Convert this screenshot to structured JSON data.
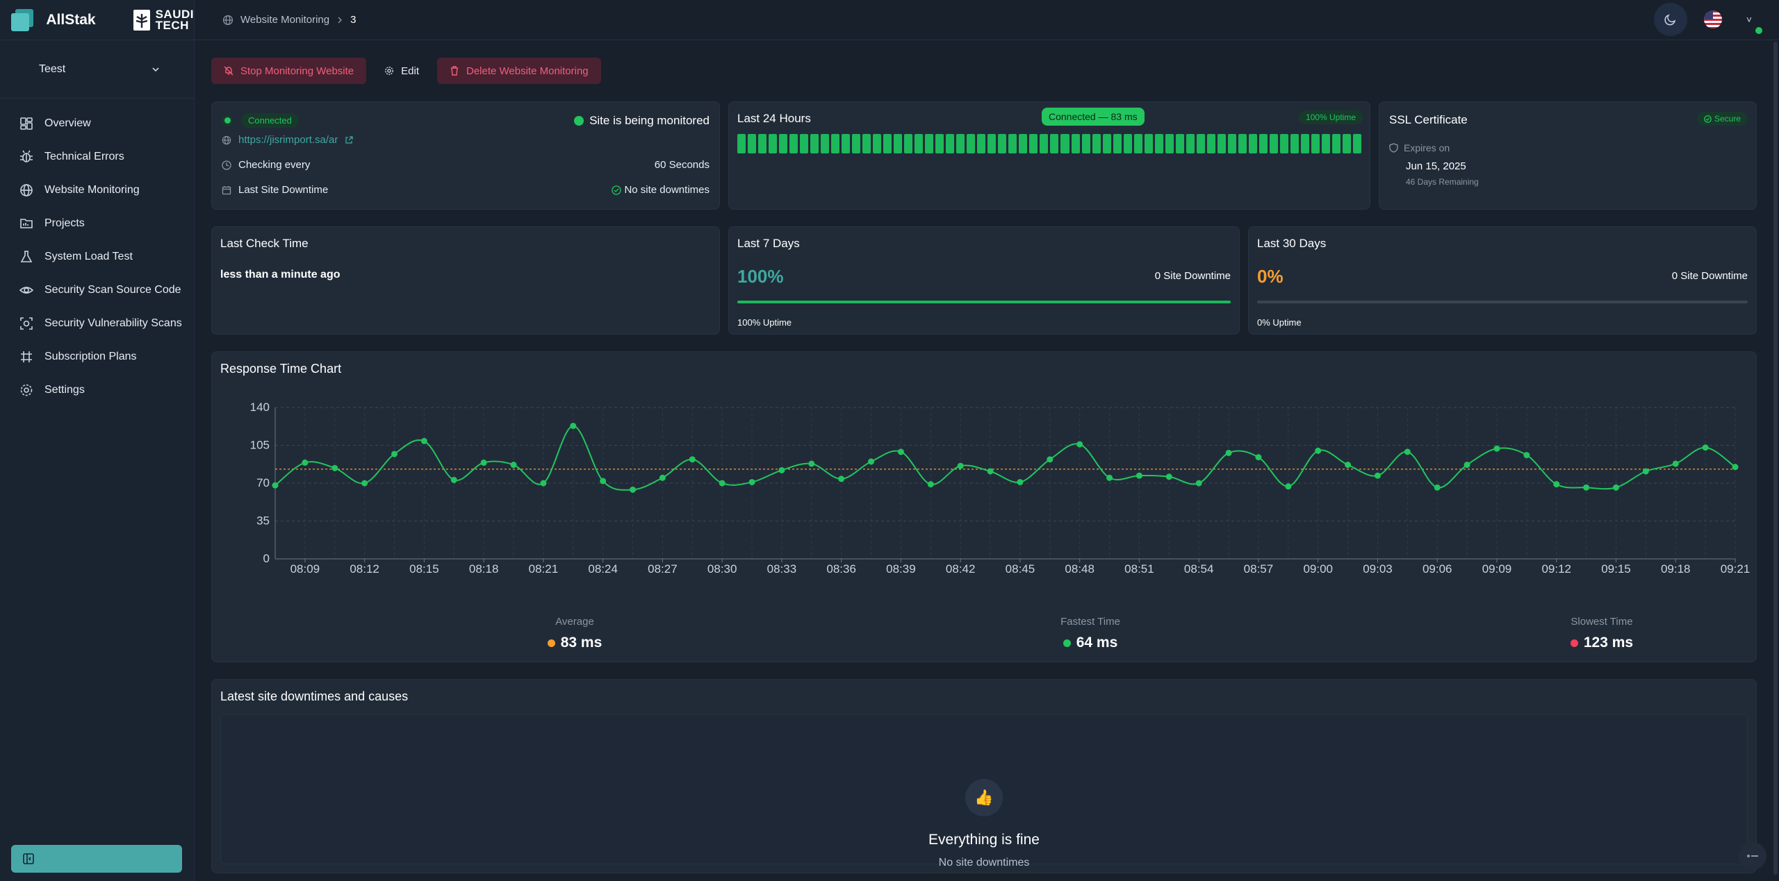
{
  "brand": {
    "name": "AllStak",
    "partner_line1": "SAUDI",
    "partner_line2": "TECH"
  },
  "breadcrumb": {
    "section": "Website Monitoring",
    "current": "3"
  },
  "project_selector": {
    "value": "Teest"
  },
  "sidebar": {
    "items": [
      {
        "label": "Overview",
        "icon": "grid-icon"
      },
      {
        "label": "Technical Errors",
        "icon": "bug-icon"
      },
      {
        "label": "Website Monitoring",
        "icon": "globe-icon"
      },
      {
        "label": "Projects",
        "icon": "folder-icon"
      },
      {
        "label": "System Load Test",
        "icon": "flask-icon"
      },
      {
        "label": "Security Scan Source Code",
        "icon": "eye-icon"
      },
      {
        "label": "Security Vulnerability Scans",
        "icon": "scan-icon"
      },
      {
        "label": "Subscription Plans",
        "icon": "plans-icon"
      },
      {
        "label": "Settings",
        "icon": "gear-icon"
      }
    ]
  },
  "actions": {
    "stop": "Stop Monitoring Website",
    "edit": "Edit",
    "delete": "Delete Website Monitoring"
  },
  "status_card": {
    "connected": "Connected",
    "monitored": "Site is being monitored",
    "url": "https://jisrimport.sa/ar",
    "checking_label": "Checking every",
    "checking_value": "60 Seconds",
    "downtime_label": "Last Site Downtime",
    "downtime_value": "No site downtimes"
  },
  "last24": {
    "title": "Last 24 Hours",
    "tooltip": "Connected — 83 ms",
    "badge": "100% Uptime",
    "segments": 60,
    "segment_color": "#1cb85b"
  },
  "ssl": {
    "title": "SSL Certificate",
    "badge": "Secure",
    "expires_label": "Expires on",
    "date": "Jun 15, 2025",
    "remaining": "46 Days Remaining"
  },
  "last_check": {
    "title": "Last Check Time",
    "value": "less than a minute ago"
  },
  "last7": {
    "title": "Last 7 Days",
    "pct": "100%",
    "downtime": "0 Site Downtime",
    "uptime_note": "100% Uptime",
    "fill": 1.0,
    "pct_color": "#3fa8a0"
  },
  "last30": {
    "title": "Last 30 Days",
    "pct": "0%",
    "downtime": "0 Site Downtime",
    "uptime_note": "0% Uptime",
    "fill": 0.0,
    "pct_color": "#f59e2e"
  },
  "response_chart": {
    "title": "Response Time Chart"
  },
  "chart_data": {
    "type": "line",
    "ylim": [
      0,
      140
    ],
    "yticks": [
      0,
      35,
      70,
      105,
      140
    ],
    "xlim": [
      0,
      49
    ],
    "x_tick_labels": [
      "08:09",
      "08:12",
      "08:15",
      "08:18",
      "08:21",
      "08:24",
      "08:27",
      "08:30",
      "08:33",
      "08:36",
      "08:39",
      "08:42",
      "08:45",
      "08:48",
      "08:51",
      "08:54",
      "08:57",
      "09:00",
      "09:03",
      "09:06",
      "09:09",
      "09:12",
      "09:15",
      "09:18",
      "09:21"
    ],
    "x_tick_positions": [
      1,
      3,
      5,
      7,
      9,
      11,
      13,
      15,
      17,
      19,
      21,
      23,
      25,
      27,
      29,
      31,
      33,
      35,
      37,
      39,
      41,
      43,
      45,
      47,
      49
    ],
    "values": [
      68,
      89,
      84,
      70,
      97,
      109,
      73,
      89,
      87,
      70,
      123,
      72,
      64,
      75,
      92,
      70,
      71,
      82,
      88,
      74,
      90,
      99,
      69,
      86,
      81,
      71,
      92,
      106,
      75,
      77,
      76,
      70,
      98,
      94,
      67,
      100,
      87,
      77,
      99,
      66,
      87,
      102,
      96,
      69,
      66,
      66,
      81,
      88,
      103,
      85
    ],
    "average_line": 83,
    "line_color": "#22c55e",
    "average_color": "#f59e2e",
    "grid": true
  },
  "stats": {
    "average_label": "Average",
    "average_value": "83 ms",
    "average_color": "#f59e2e",
    "fastest_label": "Fastest Time",
    "fastest_value": "64 ms",
    "fastest_color": "#22c55e",
    "slowest_label": "Slowest Time",
    "slowest_value": "123 ms",
    "slowest_color": "#f43f5e"
  },
  "downtimes": {
    "title": "Latest site downtimes and causes",
    "empty_title": "Everything is fine",
    "empty_sub": "No site downtimes"
  }
}
